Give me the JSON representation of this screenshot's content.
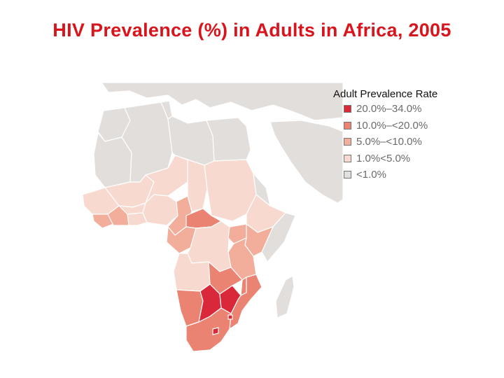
{
  "title": "HIV Prevalence (%) in Adults in Africa, 2005",
  "legend": {
    "title": "Adult Prevalence Rate",
    "items": [
      {
        "label": "20.0%–34.0%",
        "color": "#d9283a"
      },
      {
        "label": "10.0%–<20.0%",
        "color": "#ea8372"
      },
      {
        "label": "5.0%–<10.0%",
        "color": "#f2ae9b"
      },
      {
        "label": "1.0%<5.0%",
        "color": "#f7d9cf"
      },
      {
        "label": "<1.0%",
        "color": "#e2dedc"
      }
    ]
  }
}
